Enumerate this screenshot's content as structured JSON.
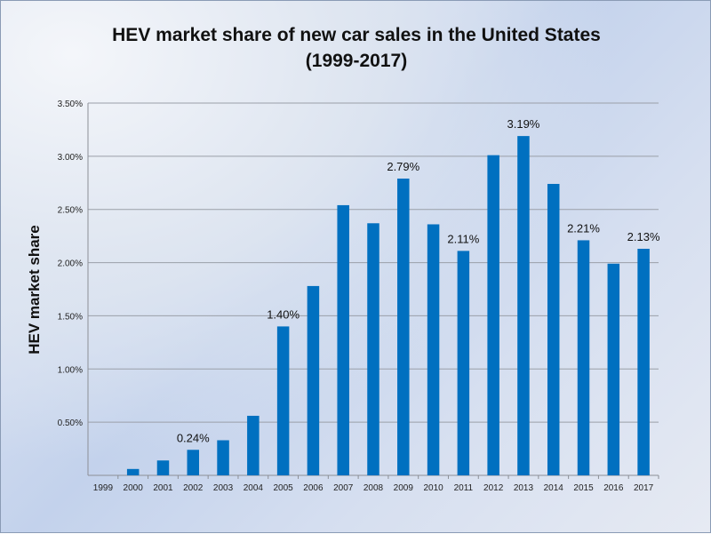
{
  "chart_data": {
    "type": "bar",
    "title": "HEV market share of new car sales in the United States",
    "subtitle": "(1999-2017)",
    "xlabel": "",
    "ylabel": "HEV market share",
    "ylim": [
      0,
      3.5
    ],
    "yticks": [
      "0.50%",
      "1.00%",
      "1.50%",
      "2.00%",
      "2.50%",
      "3.00%",
      "3.50%"
    ],
    "grid": true,
    "bar_color": "#0070c0",
    "categories": [
      "1999",
      "2000",
      "2001",
      "2002",
      "2003",
      "2004",
      "2005",
      "2006",
      "2007",
      "2008",
      "2009",
      "2010",
      "2011",
      "2012",
      "2013",
      "2014",
      "2015",
      "2016",
      "2017"
    ],
    "values": [
      0.0,
      0.06,
      0.14,
      0.24,
      0.33,
      0.56,
      1.4,
      1.78,
      2.54,
      2.37,
      2.79,
      2.36,
      2.11,
      3.01,
      3.19,
      2.74,
      2.21,
      1.99,
      2.13
    ],
    "data_labels": {
      "2002": "0.24%",
      "2005": "1.40%",
      "2009": "2.79%",
      "2011": "2.11%",
      "2013": "3.19%",
      "2015": "2.21%",
      "2017": "2.13%"
    }
  }
}
